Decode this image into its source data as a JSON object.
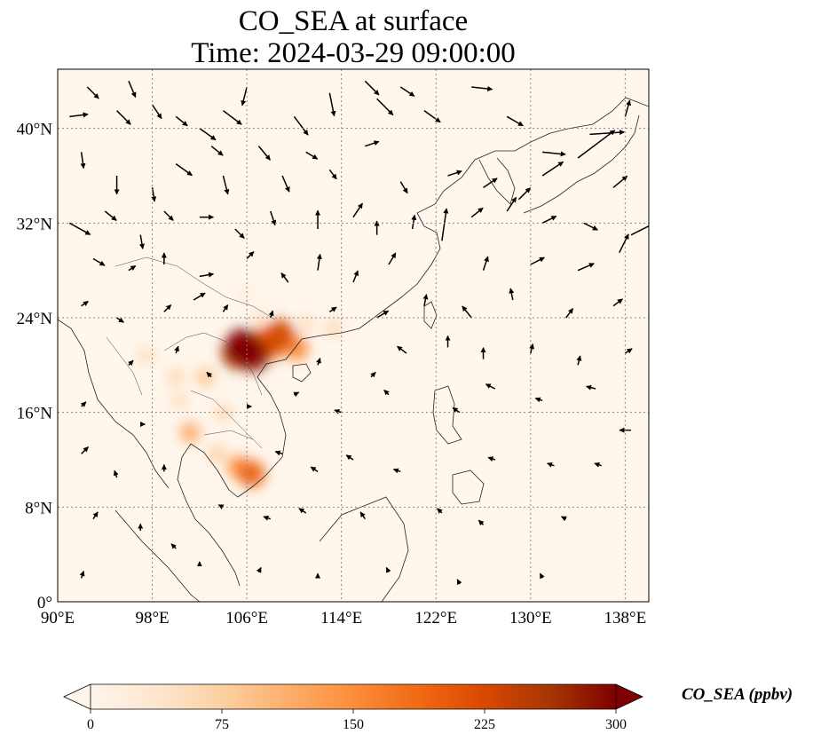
{
  "title": {
    "line1": "CO_SEA at surface",
    "line2": "Time: 2024-03-29 09:00:00"
  },
  "map": {
    "extent": {
      "lon": [
        90,
        140
      ],
      "lat": [
        0,
        45
      ]
    },
    "background_color": "#fff6ec",
    "lon_ticks": [
      {
        "value": 90,
        "label": "90°E"
      },
      {
        "value": 98,
        "label": "98°E"
      },
      {
        "value": 106,
        "label": "106°E"
      },
      {
        "value": 114,
        "label": "114°E"
      },
      {
        "value": 122,
        "label": "122°E"
      },
      {
        "value": 130,
        "label": "130°E"
      },
      {
        "value": 138,
        "label": "138°E"
      }
    ],
    "lat_ticks": [
      {
        "value": 0,
        "label": "0°"
      },
      {
        "value": 8,
        "label": "8°N"
      },
      {
        "value": 16,
        "label": "16°N"
      },
      {
        "value": 24,
        "label": "24°N"
      },
      {
        "value": 32,
        "label": "32°N"
      },
      {
        "value": 40,
        "label": "40°N"
      }
    ],
    "hotspots": [
      {
        "lon": 105.7,
        "lat": 21.6,
        "value": 300
      },
      {
        "lon": 106.5,
        "lat": 20.9,
        "value": 290
      },
      {
        "lon": 105.2,
        "lat": 21.0,
        "value": 260
      },
      {
        "lon": 108.8,
        "lat": 22.6,
        "value": 230
      },
      {
        "lon": 108.2,
        "lat": 21.7,
        "value": 200
      },
      {
        "lon": 107.5,
        "lat": 22.2,
        "value": 180
      },
      {
        "lon": 110.2,
        "lat": 21.4,
        "value": 160
      },
      {
        "lon": 106.4,
        "lat": 10.8,
        "value": 200
      },
      {
        "lon": 105.3,
        "lat": 11.4,
        "value": 150
      },
      {
        "lon": 101.2,
        "lat": 14.3,
        "value": 120
      },
      {
        "lon": 104.0,
        "lat": 16.0,
        "value": 70
      },
      {
        "lon": 102.5,
        "lat": 19.0,
        "value": 90
      },
      {
        "lon": 100.0,
        "lat": 19.0,
        "value": 70
      },
      {
        "lon": 97.5,
        "lat": 20.8,
        "value": 60
      },
      {
        "lon": 103.5,
        "lat": 12.5,
        "value": 80
      },
      {
        "lon": 100.3,
        "lat": 17.0,
        "value": 60
      },
      {
        "lon": 107.0,
        "lat": 24.0,
        "value": 50
      },
      {
        "lon": 106.0,
        "lat": 26.0,
        "value": 30
      },
      {
        "lon": 111.0,
        "lat": 23.5,
        "value": 60
      },
      {
        "lon": 113.3,
        "lat": 23.1,
        "value": 70
      }
    ],
    "wind_vectors": [
      {
        "lon": 91.0,
        "lat": 41.0,
        "u": 0.8,
        "v": 0.1
      },
      {
        "lon": 92.5,
        "lat": 43.5,
        "u": 0.5,
        "v": -0.5
      },
      {
        "lon": 95.0,
        "lat": 41.5,
        "u": 0.6,
        "v": -0.6
      },
      {
        "lon": 96.0,
        "lat": 44.0,
        "u": 0.3,
        "v": -0.7
      },
      {
        "lon": 98.0,
        "lat": 42.0,
        "u": 0.4,
        "v": -0.6
      },
      {
        "lon": 100.0,
        "lat": 41.0,
        "u": 0.5,
        "v": -0.4
      },
      {
        "lon": 102.0,
        "lat": 40.0,
        "u": 0.7,
        "v": -0.5
      },
      {
        "lon": 104.0,
        "lat": 41.5,
        "u": 0.8,
        "v": -0.6
      },
      {
        "lon": 106.0,
        "lat": 43.5,
        "u": -0.2,
        "v": -0.8
      },
      {
        "lon": 110.0,
        "lat": 41.0,
        "u": 0.6,
        "v": -0.8
      },
      {
        "lon": 113.0,
        "lat": 43.0,
        "u": 0.2,
        "v": -1.0
      },
      {
        "lon": 116.0,
        "lat": 44.0,
        "u": 0.6,
        "v": -0.6
      },
      {
        "lon": 117.0,
        "lat": 42.5,
        "u": 0.7,
        "v": -0.7
      },
      {
        "lon": 119.0,
        "lat": 43.5,
        "u": 0.6,
        "v": -0.4
      },
      {
        "lon": 121.0,
        "lat": 41.5,
        "u": 0.7,
        "v": -0.5
      },
      {
        "lon": 125.0,
        "lat": 43.5,
        "u": 0.9,
        "v": -0.1
      },
      {
        "lon": 128.0,
        "lat": 41.0,
        "u": 0.7,
        "v": -0.4
      },
      {
        "lon": 131.0,
        "lat": 38.0,
        "u": 1.0,
        "v": -0.1
      },
      {
        "lon": 131.0,
        "lat": 36.0,
        "u": 0.9,
        "v": 0.6
      },
      {
        "lon": 134.0,
        "lat": 37.5,
        "u": 1.6,
        "v": 1.2
      },
      {
        "lon": 135.0,
        "lat": 39.5,
        "u": 1.5,
        "v": 0.1
      },
      {
        "lon": 138.0,
        "lat": 41.0,
        "u": 0.2,
        "v": 0.7
      },
      {
        "lon": 92.0,
        "lat": 38.0,
        "u": 0.1,
        "v": -0.7
      },
      {
        "lon": 95.0,
        "lat": 36.0,
        "u": 0.0,
        "v": -0.8
      },
      {
        "lon": 98.0,
        "lat": 35.0,
        "u": 0.1,
        "v": -0.6
      },
      {
        "lon": 100.0,
        "lat": 37.0,
        "u": 0.7,
        "v": -0.5
      },
      {
        "lon": 103.0,
        "lat": 38.5,
        "u": 0.5,
        "v": -0.4
      },
      {
        "lon": 104.0,
        "lat": 36.0,
        "u": 0.2,
        "v": -0.8
      },
      {
        "lon": 107.0,
        "lat": 38.5,
        "u": 0.5,
        "v": -0.6
      },
      {
        "lon": 109.0,
        "lat": 36.0,
        "u": 0.3,
        "v": -0.7
      },
      {
        "lon": 111.0,
        "lat": 38.0,
        "u": 0.5,
        "v": -0.3
      },
      {
        "lon": 113.0,
        "lat": 36.5,
        "u": 0.3,
        "v": -0.4
      },
      {
        "lon": 116.0,
        "lat": 38.5,
        "u": 0.6,
        "v": 0.2
      },
      {
        "lon": 119.0,
        "lat": 35.5,
        "u": 0.3,
        "v": -0.5
      },
      {
        "lon": 123.0,
        "lat": 36.0,
        "u": 0.6,
        "v": 0.2
      },
      {
        "lon": 126.0,
        "lat": 35.0,
        "u": 0.6,
        "v": 0.4
      },
      {
        "lon": 129.0,
        "lat": 34.0,
        "u": 0.5,
        "v": 0.5
      },
      {
        "lon": 137.0,
        "lat": 35.0,
        "u": 0.6,
        "v": 0.5
      },
      {
        "lon": 91.0,
        "lat": 32.0,
        "u": 0.9,
        "v": -0.5
      },
      {
        "lon": 94.0,
        "lat": 33.0,
        "u": 0.5,
        "v": -0.4
      },
      {
        "lon": 97.0,
        "lat": 31.0,
        "u": 0.1,
        "v": -0.6
      },
      {
        "lon": 99.0,
        "lat": 33.0,
        "u": 0.4,
        "v": -0.4
      },
      {
        "lon": 102.0,
        "lat": 32.5,
        "u": 0.6,
        "v": 0.0
      },
      {
        "lon": 105.0,
        "lat": 31.5,
        "u": 0.4,
        "v": -0.4
      },
      {
        "lon": 108.0,
        "lat": 33.0,
        "u": 0.2,
        "v": -0.6
      },
      {
        "lon": 112.0,
        "lat": 31.5,
        "u": 0.0,
        "v": 0.8
      },
      {
        "lon": 115.0,
        "lat": 32.5,
        "u": 0.4,
        "v": 0.6
      },
      {
        "lon": 117.0,
        "lat": 31.0,
        "u": 0.0,
        "v": 0.6
      },
      {
        "lon": 120.0,
        "lat": 31.5,
        "u": 0.1,
        "v": 0.6
      },
      {
        "lon": 122.5,
        "lat": 30.5,
        "u": 0.2,
        "v": 1.4
      },
      {
        "lon": 125.0,
        "lat": 32.5,
        "u": 0.5,
        "v": 0.4
      },
      {
        "lon": 128.0,
        "lat": 33.0,
        "u": 0.4,
        "v": 0.6
      },
      {
        "lon": 131.0,
        "lat": 32.0,
        "u": 0.6,
        "v": 0.3
      },
      {
        "lon": 134.5,
        "lat": 32.0,
        "u": 0.6,
        "v": -0.3
      },
      {
        "lon": 138.5,
        "lat": 31.0,
        "u": 1.0,
        "v": 0.5
      },
      {
        "lon": 93.0,
        "lat": 29.0,
        "u": 0.5,
        "v": -0.3
      },
      {
        "lon": 96.0,
        "lat": 28.0,
        "u": 0.3,
        "v": 0.2
      },
      {
        "lon": 99.0,
        "lat": 28.5,
        "u": 0.0,
        "v": 0.5
      },
      {
        "lon": 102.0,
        "lat": 27.5,
        "u": 0.6,
        "v": 0.1
      },
      {
        "lon": 106.0,
        "lat": 29.0,
        "u": 0.3,
        "v": 0.3
      },
      {
        "lon": 109.5,
        "lat": 27.0,
        "u": -0.3,
        "v": 0.4
      },
      {
        "lon": 112.0,
        "lat": 28.0,
        "u": 0.1,
        "v": 0.7
      },
      {
        "lon": 115.0,
        "lat": 27.0,
        "u": 0.2,
        "v": 0.5
      },
      {
        "lon": 118.0,
        "lat": 28.5,
        "u": 0.3,
        "v": 0.5
      },
      {
        "lon": 126.0,
        "lat": 28.0,
        "u": 0.2,
        "v": 0.6
      },
      {
        "lon": 130.0,
        "lat": 28.5,
        "u": 0.6,
        "v": 0.3
      },
      {
        "lon": 134.0,
        "lat": 28.0,
        "u": 0.7,
        "v": 0.3
      },
      {
        "lon": 137.5,
        "lat": 29.5,
        "u": 0.4,
        "v": 0.8
      },
      {
        "lon": 92.0,
        "lat": 25.0,
        "u": 0.3,
        "v": 0.2
      },
      {
        "lon": 95.0,
        "lat": 24.0,
        "u": 0.3,
        "v": -0.2
      },
      {
        "lon": 99.0,
        "lat": 24.5,
        "u": 0.3,
        "v": 0.3
      },
      {
        "lon": 101.5,
        "lat": 25.5,
        "u": 0.5,
        "v": 0.3
      },
      {
        "lon": 104.0,
        "lat": 24.5,
        "u": 0.2,
        "v": 0.3
      },
      {
        "lon": 108.0,
        "lat": 24.0,
        "u": 0.1,
        "v": 0.3
      },
      {
        "lon": 113.0,
        "lat": 24.5,
        "u": 0.3,
        "v": 0.2
      },
      {
        "lon": 117.0,
        "lat": 24.0,
        "u": 0.5,
        "v": 0.3
      },
      {
        "lon": 121.0,
        "lat": 25.0,
        "u": 0.1,
        "v": 0.5
      },
      {
        "lon": 125.0,
        "lat": 24.0,
        "u": -0.4,
        "v": 0.5
      },
      {
        "lon": 128.5,
        "lat": 25.5,
        "u": -0.1,
        "v": 0.5
      },
      {
        "lon": 133.0,
        "lat": 24.0,
        "u": 0.3,
        "v": 0.4
      },
      {
        "lon": 137.0,
        "lat": 25.0,
        "u": 0.4,
        "v": 0.3
      },
      {
        "lon": 96.0,
        "lat": 20.0,
        "u": 0.2,
        "v": 0.2
      },
      {
        "lon": 100.0,
        "lat": 21.0,
        "u": 0.1,
        "v": 0.3
      },
      {
        "lon": 103.0,
        "lat": 19.0,
        "u": -0.2,
        "v": 0.2
      },
      {
        "lon": 112.0,
        "lat": 20.0,
        "u": 0.1,
        "v": 0.3
      },
      {
        "lon": 116.5,
        "lat": 19.0,
        "u": 0.2,
        "v": 0.2
      },
      {
        "lon": 119.5,
        "lat": 21.0,
        "u": -0.4,
        "v": 0.3
      },
      {
        "lon": 123.0,
        "lat": 21.5,
        "u": 0.0,
        "v": 0.5
      },
      {
        "lon": 126.0,
        "lat": 20.5,
        "u": 0.0,
        "v": 0.5
      },
      {
        "lon": 130.0,
        "lat": 21.0,
        "u": 0.1,
        "v": 0.4
      },
      {
        "lon": 134.0,
        "lat": 20.0,
        "u": 0.1,
        "v": 0.4
      },
      {
        "lon": 138.0,
        "lat": 21.0,
        "u": 0.3,
        "v": 0.2
      },
      {
        "lon": 92.0,
        "lat": 16.5,
        "u": 0.2,
        "v": 0.2
      },
      {
        "lon": 97.0,
        "lat": 15.0,
        "u": 0.2,
        "v": 0.0
      },
      {
        "lon": 106.0,
        "lat": 16.5,
        "u": 0.2,
        "v": 0.0
      },
      {
        "lon": 110.0,
        "lat": 17.5,
        "u": 0.2,
        "v": 0.1
      },
      {
        "lon": 114.0,
        "lat": 16.0,
        "u": -0.3,
        "v": 0.1
      },
      {
        "lon": 118.0,
        "lat": 17.5,
        "u": -0.2,
        "v": 0.2
      },
      {
        "lon": 124.0,
        "lat": 16.0,
        "u": -0.3,
        "v": 0.2
      },
      {
        "lon": 127.0,
        "lat": 18.0,
        "u": -0.4,
        "v": 0.2
      },
      {
        "lon": 131.0,
        "lat": 17.0,
        "u": -0.3,
        "v": 0.1
      },
      {
        "lon": 135.5,
        "lat": 18.0,
        "u": -0.4,
        "v": 0.1
      },
      {
        "lon": 138.5,
        "lat": 14.5,
        "u": -0.5,
        "v": 0.0
      },
      {
        "lon": 92.0,
        "lat": 12.5,
        "u": 0.3,
        "v": 0.3
      },
      {
        "lon": 95.0,
        "lat": 10.5,
        "u": -0.1,
        "v": 0.3
      },
      {
        "lon": 99.0,
        "lat": 11.0,
        "u": 0.0,
        "v": 0.3
      },
      {
        "lon": 109.0,
        "lat": 12.5,
        "u": -0.3,
        "v": 0.1
      },
      {
        "lon": 112.0,
        "lat": 11.0,
        "u": -0.3,
        "v": 0.2
      },
      {
        "lon": 115.0,
        "lat": 12.0,
        "u": -0.3,
        "v": 0.2
      },
      {
        "lon": 119.0,
        "lat": 11.0,
        "u": -0.3,
        "v": 0.1
      },
      {
        "lon": 127.0,
        "lat": 12.0,
        "u": -0.3,
        "v": 0.1
      },
      {
        "lon": 132.0,
        "lat": 11.5,
        "u": -0.3,
        "v": 0.1
      },
      {
        "lon": 136.0,
        "lat": 11.5,
        "u": -0.3,
        "v": 0.1
      },
      {
        "lon": 93.0,
        "lat": 7.0,
        "u": 0.2,
        "v": 0.3
      },
      {
        "lon": 97.0,
        "lat": 6.0,
        "u": 0.0,
        "v": 0.3
      },
      {
        "lon": 100.0,
        "lat": 4.5,
        "u": -0.2,
        "v": 0.2
      },
      {
        "lon": 104.0,
        "lat": 8.0,
        "u": -0.2,
        "v": 0.1
      },
      {
        "lon": 108.0,
        "lat": 7.0,
        "u": -0.3,
        "v": 0.1
      },
      {
        "lon": 111.0,
        "lat": 7.5,
        "u": -0.3,
        "v": 0.2
      },
      {
        "lon": 116.0,
        "lat": 7.0,
        "u": -0.2,
        "v": 0.3
      },
      {
        "lon": 122.5,
        "lat": 7.5,
        "u": -0.2,
        "v": 0.2
      },
      {
        "lon": 126.0,
        "lat": 6.5,
        "u": -0.2,
        "v": 0.2
      },
      {
        "lon": 133.0,
        "lat": 7.0,
        "u": -0.2,
        "v": 0.1
      },
      {
        "lon": 92.0,
        "lat": 2.0,
        "u": 0.1,
        "v": 0.3
      },
      {
        "lon": 102.0,
        "lat": 3.0,
        "u": 0.0,
        "v": 0.2
      },
      {
        "lon": 107.0,
        "lat": 2.5,
        "u": 0.1,
        "v": 0.2
      },
      {
        "lon": 112.0,
        "lat": 2.0,
        "u": 0.0,
        "v": 0.2
      },
      {
        "lon": 118.0,
        "lat": 2.5,
        "u": -0.1,
        "v": 0.2
      },
      {
        "lon": 124.0,
        "lat": 1.5,
        "u": -0.1,
        "v": 0.2
      },
      {
        "lon": 131.0,
        "lat": 2.0,
        "u": -0.1,
        "v": 0.2
      }
    ]
  },
  "colorbar": {
    "label": "CO_SEA (ppbv)",
    "min": 0,
    "max": 300,
    "ticks": [
      0,
      75,
      150,
      225,
      300
    ],
    "colors": [
      "#fff5eb",
      "#fee6ce",
      "#fdd0a2",
      "#fdae6b",
      "#fd8d3c",
      "#f16913",
      "#d94801",
      "#a63603",
      "#7f0000"
    ]
  }
}
